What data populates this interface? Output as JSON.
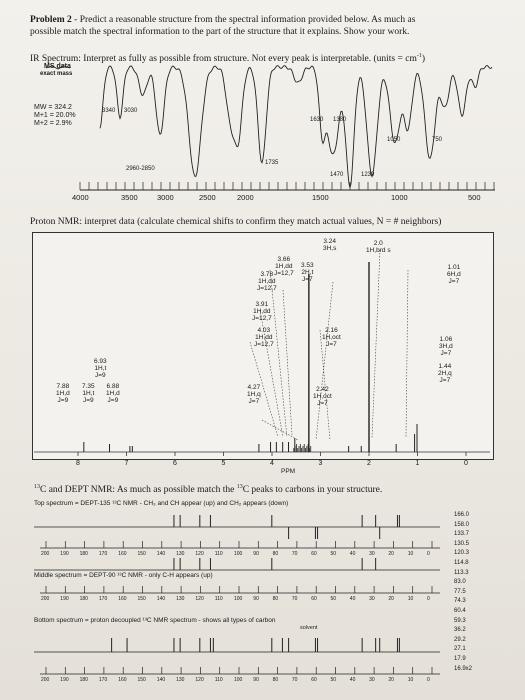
{
  "problem": {
    "number": "Problem 2",
    "instructions_line1": " - Predict a reasonable structure from the spectral information provided below.  As much as",
    "instructions_line2": "possible match the spectral information to the part of the structure that it explains.  Show your work."
  },
  "ir": {
    "heading": "IR Spectrum: Interpret as fully as possible from structure.  Not every peak is interpretable.  (units = cm",
    "heading_sup": "-1",
    "heading_end": ")",
    "ms_label": "MS data",
    "ms_sub": "exact mass",
    "mw": "MW = 324.2",
    "m1": "M+1 = 20.0%",
    "m2": "M+2 = 2.9%",
    "peaks": [
      "3340",
      "3030",
      "2960-2850",
      "1735",
      "1630",
      "1380",
      "1470",
      "1230",
      "1050",
      "750"
    ],
    "axis_ticks": [
      "4000",
      "3500",
      "3000",
      "2500",
      "2000",
      "1500",
      "1000",
      "500"
    ]
  },
  "hnmr": {
    "heading": "Proton NMR: interpret data (calculate chemical shifts to confirm they match actual values, N = # neighbors)",
    "axis_label": "PPM",
    "axis_ticks": [
      "8",
      "7",
      "6",
      "5",
      "4",
      "3",
      "2",
      "1",
      "0"
    ],
    "signals": [
      {
        "text": "3.66\n1H,dd\nJ=12,7"
      },
      {
        "text": "3.53\n2H,t\nJ=7"
      },
      {
        "text": "3.78\n1H,dd\nJ=12,7"
      },
      {
        "text": "3.91\n1H,dd\nJ=12,7"
      },
      {
        "text": "3.24\n3H,s"
      },
      {
        "text": "2.0\n1H,brd s"
      },
      {
        "text": "1.01\n6H,d\nJ=7"
      },
      {
        "text": "4.03\n1H,dd\nJ=12,7"
      },
      {
        "text": "6.93\n1H,t\nJ=9"
      },
      {
        "text": "2.16\n1H,oct\nJ=7"
      },
      {
        "text": "1.06\n3H,d\nJ=7"
      },
      {
        "text": "1.44\n2H,q\nJ=7"
      },
      {
        "text": "7.88\n1H,d\nJ=9"
      },
      {
        "text": "7.35\n1H,t\nJ=9"
      },
      {
        "text": "6.88\n1H,d\nJ=9"
      },
      {
        "text": "4.27\n1H,q\nJ=7"
      },
      {
        "text": "2.42\n1H,oct\nJ=7"
      }
    ]
  },
  "cnmr": {
    "heading_sup": "13",
    "heading": "C and DEPT NMR: As much as possible match the ",
    "heading_sup2": "13",
    "heading_end": "C peaks to carbons in your structure.",
    "top_title": "Top spectrum = DEPT-135 ¹³C NMR - CH₃ and CH appear (up) and CH₂ appears (down)",
    "middle_title": "Middle spectrum = DEPT-90 ¹³C NMR - only C-H appears (up)",
    "bottom_title": "Bottom spectrum = proton decoupled ¹³C NMR spectrum - shows all types of carbon",
    "solvent": "solvent",
    "axis_ticks": [
      "200",
      "190",
      "180",
      "170",
      "160",
      "150",
      "140",
      "130",
      "120",
      "110",
      "100",
      "90",
      "80",
      "70",
      "60",
      "50",
      "40",
      "30",
      "20",
      "10",
      "0"
    ],
    "shift_list": [
      "166.0",
      "158.0",
      "133.7",
      "130.5",
      "120.3",
      "114.8",
      "113.3",
      "83.0",
      "77.5",
      "74.3",
      "60.4",
      "59.3",
      "36.2",
      "29.2",
      "27.1",
      "17.9",
      "16.9x2"
    ]
  }
}
